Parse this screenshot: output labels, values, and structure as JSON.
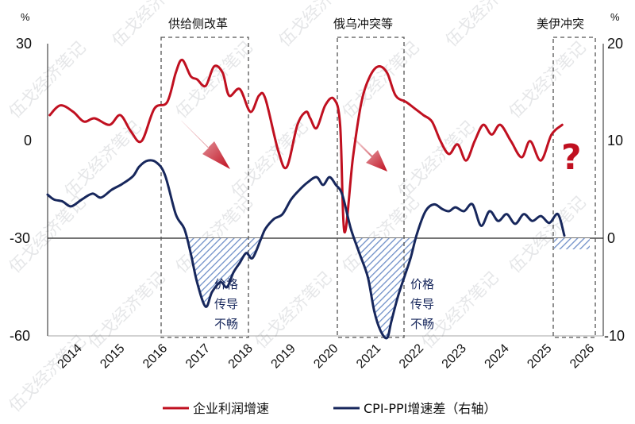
{
  "chart_data": {
    "type": "line",
    "left_axis": {
      "unit": "%",
      "ylim": [
        -60,
        30
      ],
      "ticks": [
        "30",
        "0",
        "-30",
        "-60"
      ]
    },
    "right_axis": {
      "unit": "%",
      "ylim": [
        -10,
        20
      ],
      "ticks": [
        "20",
        "10",
        "0",
        "-10"
      ]
    },
    "x_ticks": [
      "2014",
      "2015",
      "2016",
      "2017",
      "2018",
      "2019",
      "2020",
      "2021",
      "2022",
      "2023",
      "2024",
      "2025",
      "2026"
    ],
    "series": [
      {
        "name": "企业利润增速",
        "axis": "left",
        "color": "#c01020",
        "x": [
          2014.05,
          2014.3,
          2014.6,
          2014.85,
          2015.1,
          2015.45,
          2015.7,
          2015.95,
          2016.2,
          2016.5,
          2016.8,
          2017.0,
          2017.15,
          2017.35,
          2017.5,
          2017.7,
          2017.9,
          2018.1,
          2018.25,
          2018.5,
          2018.75,
          2018.95,
          2019.1,
          2019.4,
          2019.6,
          2019.85,
          2020.05,
          2020.15,
          2020.3,
          2020.5,
          2020.7,
          2020.85,
          2020.95,
          2021.15,
          2021.35,
          2021.55,
          2021.75,
          2021.95,
          2022.15,
          2022.4,
          2022.6,
          2022.8,
          2023.0,
          2023.2,
          2023.4,
          2023.6,
          2023.8,
          2024.0,
          2024.2,
          2024.4,
          2024.6,
          2024.85,
          2025.1,
          2025.3,
          2025.55,
          2025.8,
          2026.05
        ],
        "values": [
          8,
          11,
          9,
          6,
          7,
          5,
          8,
          3,
          0,
          10,
          12,
          21,
          25,
          20,
          19,
          17,
          23,
          21,
          14,
          16,
          9,
          14,
          13,
          -3,
          -8,
          5,
          9,
          7,
          4,
          11,
          13,
          5,
          -28,
          -5,
          12,
          20,
          23,
          21,
          14,
          12,
          10,
          8,
          6,
          0,
          -4,
          -1,
          -6,
          0,
          5,
          2,
          5,
          0,
          -5,
          0,
          -6,
          2,
          5
        ]
      },
      {
        "name": "CPI-PPI增速差（右轴）",
        "axis": "right",
        "color": "#17275c",
        "x": [
          2014.0,
          2014.15,
          2014.35,
          2014.55,
          2014.8,
          2015.05,
          2015.25,
          2015.5,
          2015.75,
          2016.0,
          2016.15,
          2016.35,
          2016.55,
          2016.75,
          2017.0,
          2017.2,
          2017.35,
          2017.5,
          2017.7,
          2017.85,
          2018.05,
          2018.2,
          2018.35,
          2018.5,
          2018.65,
          2018.8,
          2019.0,
          2019.1,
          2019.3,
          2019.5,
          2019.7,
          2019.9,
          2020.1,
          2020.3,
          2020.45,
          2020.6,
          2020.75,
          2020.9,
          2021.1,
          2021.3,
          2021.5,
          2021.65,
          2021.8,
          2021.95,
          2022.05,
          2022.2,
          2022.35,
          2022.5,
          2022.65,
          2022.85,
          2023.05,
          2023.25,
          2023.4,
          2023.55,
          2023.75,
          2023.95,
          2024.15,
          2024.35,
          2024.55,
          2024.75,
          2024.95,
          2025.15,
          2025.35,
          2025.55,
          2025.75,
          2025.95,
          2026.1
        ],
        "values": [
          4.5,
          4,
          3.8,
          3.3,
          4,
          4.6,
          4.2,
          5,
          5.6,
          6.4,
          7.4,
          8,
          7.8,
          6.5,
          2.5,
          1,
          -1.5,
          -4.5,
          -7,
          -5.5,
          -4.5,
          -5,
          -3.5,
          -2.5,
          -1.5,
          -2,
          0,
          1,
          2,
          2.5,
          4,
          5,
          5.8,
          6.3,
          5.5,
          6.3,
          5.5,
          4.5,
          1,
          -1.5,
          -4,
          -7.5,
          -9.5,
          -10.2,
          -8.5,
          -6,
          -4,
          -2,
          0.5,
          2.8,
          3.5,
          3,
          2.8,
          3.2,
          2.8,
          3.5,
          1.3,
          2.8,
          1.8,
          2.5,
          1.5,
          2.5,
          1.8,
          2.3,
          1.6,
          2.5,
          0.3
        ]
      }
    ],
    "annotations": {
      "box1_label": "供给侧改革",
      "box2_label": "俄乌冲突等",
      "box3_label": "美伊冲突",
      "gap_label_line1": "价格",
      "gap_label_line2": "传导",
      "gap_label_line3": "不畅",
      "question_mark": "?"
    },
    "watermark": "伍戈经济笔记",
    "legend_placement": "bottom-center"
  }
}
